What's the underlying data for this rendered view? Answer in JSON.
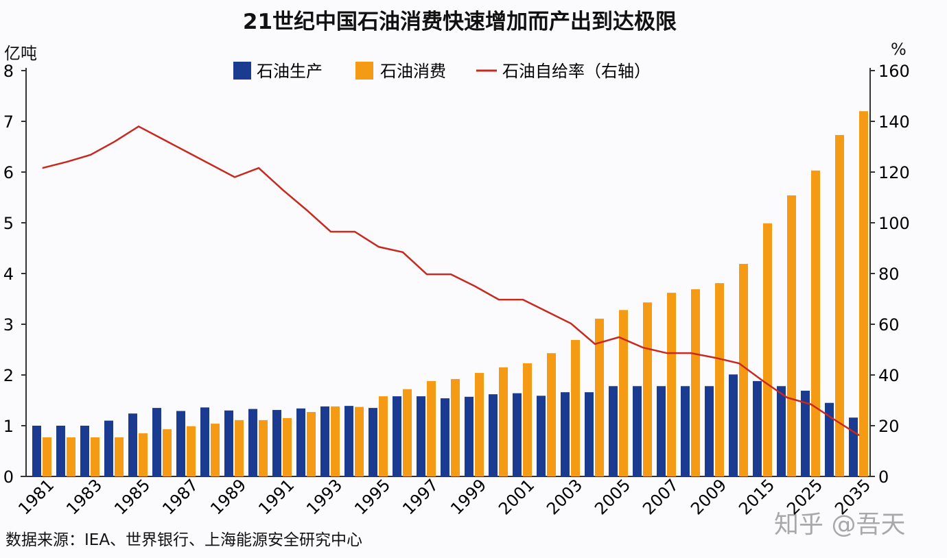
{
  "chart_data": {
    "type": "bar",
    "title": "21世纪中国石油消费快速增加而产出到达极限",
    "ylabel": "亿吨",
    "y2label": "%",
    "ylim": [
      0,
      8
    ],
    "y2lim": [
      0,
      160
    ],
    "yticks": [
      0,
      1,
      2,
      3,
      4,
      5,
      6,
      7,
      8
    ],
    "y2ticks": [
      0,
      20,
      40,
      60,
      80,
      100,
      120,
      140,
      160
    ],
    "categories": [
      "1981",
      "1982",
      "1983",
      "1984",
      "1985",
      "1986",
      "1987",
      "1988",
      "1989",
      "1990",
      "1991",
      "1992",
      "1993",
      "1994",
      "1995",
      "1996",
      "1997",
      "1998",
      "1999",
      "2000",
      "2001",
      "2002",
      "2003",
      "2004",
      "2005",
      "2006",
      "2007",
      "2008",
      "2009",
      "2010",
      "2015",
      "2020",
      "2025",
      "2030",
      "2035"
    ],
    "tick_labels": [
      "1981",
      "1983",
      "1985",
      "1987",
      "1989",
      "1991",
      "1993",
      "1995",
      "1997",
      "1999",
      "2001",
      "2003",
      "2005",
      "2007",
      "2009",
      "2015",
      "2025",
      "2035"
    ],
    "legend_position": "top",
    "grid": false,
    "series": [
      {
        "name": "石油生产",
        "kind": "bar",
        "axis": "left",
        "color": "#1a3b8f",
        "values": [
          1.0,
          1.0,
          1.0,
          1.1,
          1.24,
          1.35,
          1.29,
          1.36,
          1.3,
          1.33,
          1.31,
          1.34,
          1.38,
          1.39,
          1.35,
          1.58,
          1.58,
          1.54,
          1.57,
          1.62,
          1.64,
          1.59,
          1.66,
          1.66,
          1.78,
          1.78,
          1.78,
          1.78,
          1.78,
          2.01,
          1.88,
          1.78,
          1.69,
          1.45,
          1.16
        ]
      },
      {
        "name": "石油消费",
        "kind": "bar",
        "axis": "left",
        "color": "#f59a14",
        "values": [
          0.77,
          0.77,
          0.77,
          0.77,
          0.85,
          0.93,
          0.99,
          1.04,
          1.11,
          1.11,
          1.15,
          1.27,
          1.38,
          1.37,
          1.58,
          1.72,
          1.88,
          1.92,
          2.04,
          2.15,
          2.23,
          2.43,
          2.69,
          3.11,
          3.28,
          3.43,
          3.62,
          3.69,
          3.81,
          4.19,
          4.99,
          5.54,
          6.03,
          6.73,
          7.2
        ]
      },
      {
        "name": "石油自给率（右轴）",
        "kind": "line",
        "axis": "right",
        "color": "#c8281e",
        "values": [
          121.6,
          124,
          126.8,
          132,
          138,
          133,
          128,
          123,
          118,
          121.6,
          113,
          105,
          96.5,
          96.5,
          90.5,
          88.4,
          79.7,
          79.7,
          75,
          69.7,
          69.7,
          65,
          60.3,
          52.2,
          54.9,
          50.8,
          48.6,
          48.6,
          46.8,
          44.6,
          37.6,
          31.1,
          28.4,
          22.2,
          16.2
        ]
      }
    ]
  },
  "source": "数据来源：IEA、世界银行、上海能源安全研究中心",
  "watermark": "知乎 @吾天"
}
